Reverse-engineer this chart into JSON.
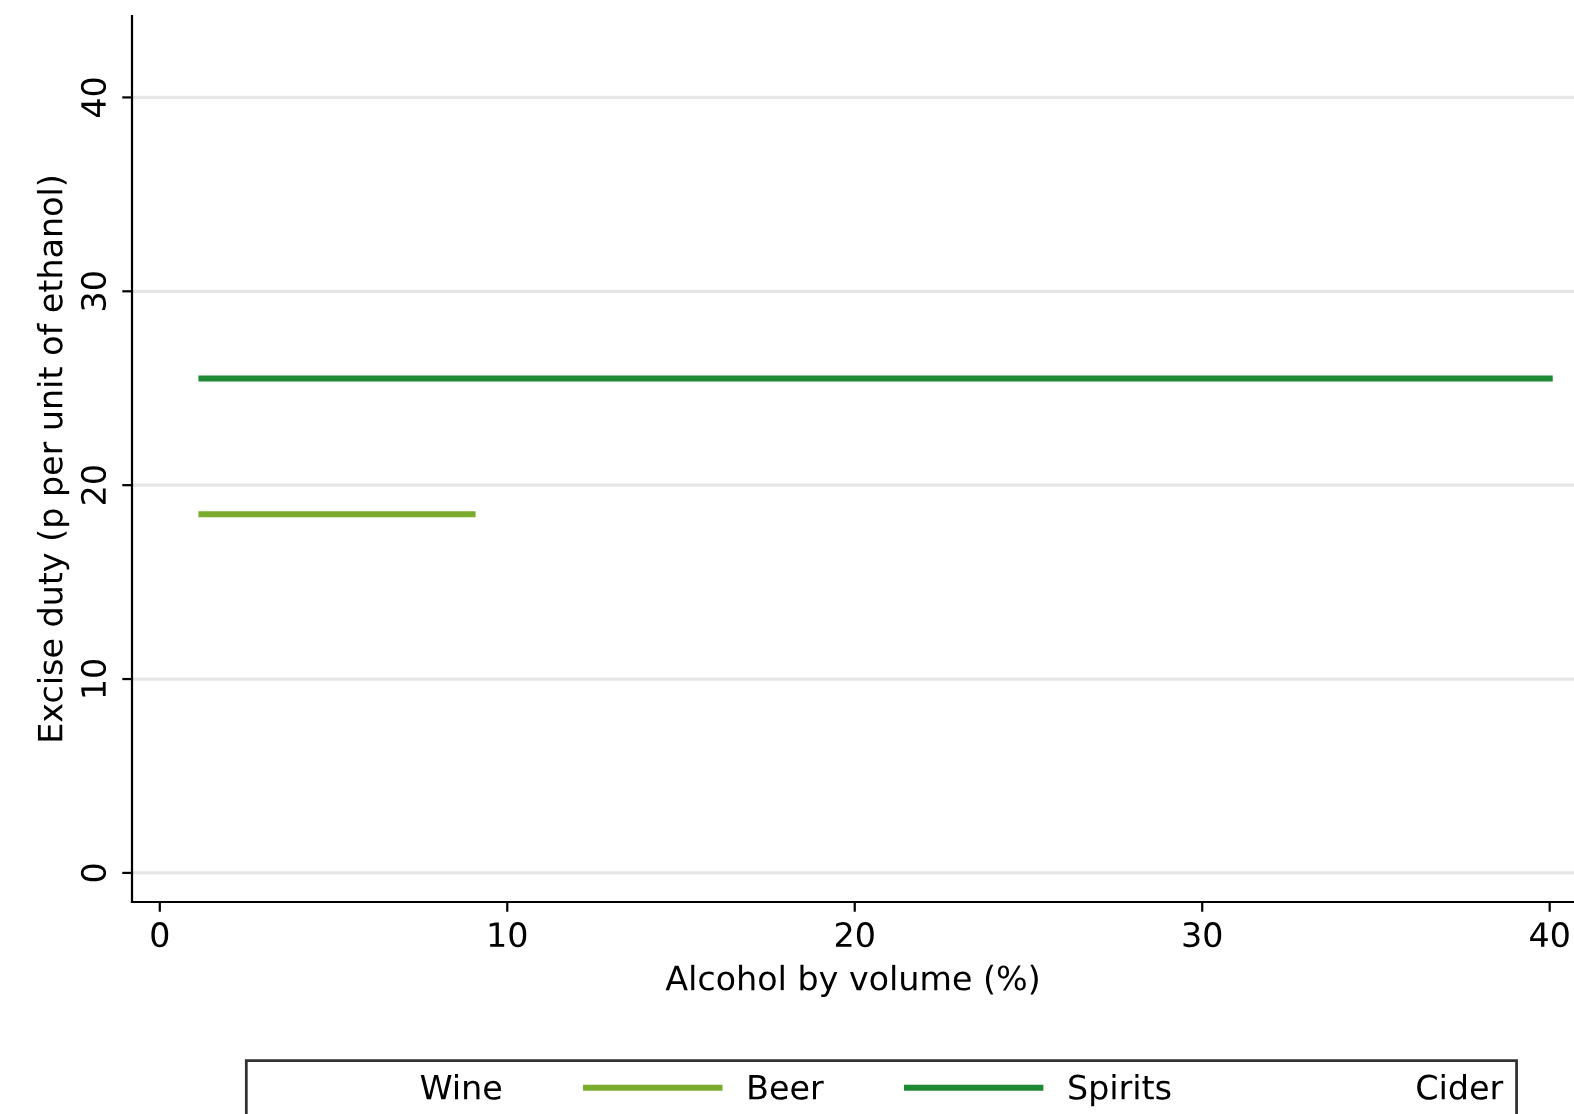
{
  "chart_data": {
    "type": "line",
    "xlabel": "Alcohol by volume (%)",
    "ylabel": "Excise duty (p per unit of ethanol)",
    "x": [
      1.2,
      9,
      40
    ],
    "series": [
      {
        "name": "Wine",
        "values": [
          null,
          null,
          null
        ]
      },
      {
        "name": "Beer",
        "color": "#7aab2c",
        "values": [
          18.5,
          18.5,
          null
        ]
      },
      {
        "name": "Spirits",
        "color": "#1e8a34",
        "values": [
          25.5,
          25.5,
          25.5
        ]
      },
      {
        "name": "Cider",
        "values": [
          null,
          null,
          null
        ]
      }
    ],
    "xlim": [
      -0.8,
      40.7
    ],
    "ylim": [
      -1.5,
      44.2
    ],
    "xticks": [
      0,
      10,
      20,
      30,
      40
    ],
    "yticks": [
      0,
      10,
      20,
      30,
      40
    ],
    "grid": "y",
    "legend": "bottom",
    "marker": "none",
    "line_style": "solid"
  }
}
